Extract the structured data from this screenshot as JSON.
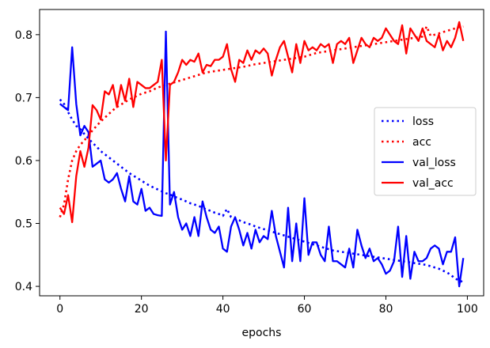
{
  "chart_data": {
    "type": "line",
    "title": "",
    "xlabel": "epochs",
    "ylabel": "",
    "xlim": [
      -5,
      104
    ],
    "ylim": [
      0.385,
      0.84
    ],
    "xticks": [
      0,
      20,
      40,
      60,
      80,
      100
    ],
    "yticks": [
      0.4,
      0.5,
      0.6,
      0.7,
      0.8
    ],
    "grid": false,
    "legend_position": "center-right",
    "x": [
      0,
      1,
      2,
      3,
      4,
      5,
      6,
      7,
      8,
      9,
      10,
      11,
      12,
      13,
      14,
      15,
      16,
      17,
      18,
      19,
      20,
      21,
      22,
      23,
      24,
      25,
      26,
      27,
      28,
      29,
      30,
      31,
      32,
      33,
      34,
      35,
      36,
      37,
      38,
      39,
      40,
      41,
      42,
      43,
      44,
      45,
      46,
      47,
      48,
      49,
      50,
      51,
      52,
      53,
      54,
      55,
      56,
      57,
      58,
      59,
      60,
      61,
      62,
      63,
      64,
      65,
      66,
      67,
      68,
      69,
      70,
      71,
      72,
      73,
      74,
      75,
      76,
      77,
      78,
      79,
      80,
      81,
      82,
      83,
      84,
      85,
      86,
      87,
      88,
      89,
      90,
      91,
      92,
      93,
      94,
      95,
      96,
      97,
      98,
      99
    ],
    "series": [
      {
        "name": "loss",
        "color": "#0000ff",
        "style": "dotted",
        "values": [
          0.697,
          0.69,
          0.677,
          0.665,
          0.655,
          0.65,
          0.642,
          0.635,
          0.628,
          0.622,
          0.615,
          0.61,
          0.605,
          0.6,
          0.595,
          0.59,
          0.585,
          0.58,
          0.576,
          0.572,
          0.568,
          0.564,
          0.56,
          0.557,
          0.554,
          0.551,
          0.548,
          0.546,
          0.543,
          0.54,
          0.538,
          0.535,
          0.532,
          0.53,
          0.528,
          0.525,
          0.522,
          0.52,
          0.517,
          0.515,
          0.512,
          0.523,
          0.51,
          0.507,
          0.505,
          0.502,
          0.5,
          0.498,
          0.495,
          0.493,
          0.491,
          0.489,
          0.487,
          0.485,
          0.483,
          0.481,
          0.479,
          0.477,
          0.475,
          0.473,
          0.471,
          0.469,
          0.467,
          0.465,
          0.463,
          0.461,
          0.459,
          0.457,
          0.456,
          0.455,
          0.454,
          0.453,
          0.452,
          0.451,
          0.45,
          0.449,
          0.448,
          0.447,
          0.446,
          0.445,
          0.444,
          0.443,
          0.442,
          0.441,
          0.44,
          0.439,
          0.438,
          0.437,
          0.436,
          0.435,
          0.434,
          0.432,
          0.43,
          0.428,
          0.425,
          0.422,
          0.418,
          0.412,
          0.41,
          0.406
        ]
      },
      {
        "name": "acc",
        "color": "#ff0000",
        "style": "dotted",
        "values": [
          0.51,
          0.53,
          0.57,
          0.6,
          0.615,
          0.625,
          0.632,
          0.64,
          0.648,
          0.655,
          0.662,
          0.668,
          0.674,
          0.68,
          0.685,
          0.689,
          0.693,
          0.697,
          0.7,
          0.703,
          0.706,
          0.708,
          0.71,
          0.713,
          0.716,
          0.718,
          0.72,
          0.722,
          0.724,
          0.726,
          0.728,
          0.73,
          0.732,
          0.734,
          0.736,
          0.738,
          0.74,
          0.741,
          0.742,
          0.743,
          0.744,
          0.745,
          0.746,
          0.747,
          0.748,
          0.749,
          0.75,
          0.752,
          0.753,
          0.754,
          0.755,
          0.756,
          0.757,
          0.758,
          0.759,
          0.76,
          0.761,
          0.762,
          0.763,
          0.764,
          0.765,
          0.767,
          0.769,
          0.771,
          0.772,
          0.773,
          0.774,
          0.775,
          0.776,
          0.777,
          0.778,
          0.779,
          0.78,
          0.781,
          0.782,
          0.783,
          0.784,
          0.785,
          0.786,
          0.787,
          0.788,
          0.789,
          0.79,
          0.791,
          0.792,
          0.793,
          0.794,
          0.795,
          0.796,
          0.797,
          0.813,
          0.798,
          0.8,
          0.802,
          0.804,
          0.806,
          0.808,
          0.81,
          0.812,
          0.813
        ]
      },
      {
        "name": "val_loss",
        "color": "#0000ff",
        "style": "solid",
        "values": [
          0.69,
          0.685,
          0.68,
          0.78,
          0.69,
          0.64,
          0.655,
          0.645,
          0.59,
          0.595,
          0.6,
          0.57,
          0.565,
          0.57,
          0.58,
          0.555,
          0.535,
          0.575,
          0.535,
          0.53,
          0.555,
          0.52,
          0.525,
          0.515,
          0.513,
          0.512,
          0.805,
          0.53,
          0.55,
          0.51,
          0.49,
          0.5,
          0.48,
          0.51,
          0.48,
          0.535,
          0.51,
          0.49,
          0.485,
          0.495,
          0.46,
          0.455,
          0.495,
          0.51,
          0.49,
          0.465,
          0.485,
          0.46,
          0.49,
          0.47,
          0.48,
          0.475,
          0.52,
          0.48,
          0.455,
          0.43,
          0.525,
          0.44,
          0.5,
          0.44,
          0.54,
          0.45,
          0.47,
          0.47,
          0.45,
          0.44,
          0.495,
          0.44,
          0.44,
          0.435,
          0.43,
          0.46,
          0.43,
          0.49,
          0.465,
          0.445,
          0.46,
          0.44,
          0.445,
          0.435,
          0.42,
          0.425,
          0.44,
          0.495,
          0.415,
          0.48,
          0.412,
          0.455,
          0.44,
          0.44,
          0.445,
          0.46,
          0.465,
          0.46,
          0.435,
          0.455,
          0.455,
          0.478,
          0.4,
          0.445
        ]
      },
      {
        "name": "val_acc",
        "color": "#ff0000",
        "style": "solid",
        "values": [
          0.525,
          0.515,
          0.545,
          0.502,
          0.575,
          0.615,
          0.59,
          0.62,
          0.688,
          0.68,
          0.665,
          0.71,
          0.705,
          0.72,
          0.685,
          0.72,
          0.695,
          0.73,
          0.685,
          0.725,
          0.72,
          0.715,
          0.715,
          0.72,
          0.725,
          0.76,
          0.6,
          0.72,
          0.725,
          0.74,
          0.76,
          0.752,
          0.76,
          0.757,
          0.77,
          0.74,
          0.752,
          0.75,
          0.76,
          0.76,
          0.765,
          0.785,
          0.745,
          0.725,
          0.76,
          0.755,
          0.775,
          0.76,
          0.775,
          0.77,
          0.778,
          0.77,
          0.735,
          0.76,
          0.78,
          0.79,
          0.765,
          0.74,
          0.785,
          0.755,
          0.79,
          0.775,
          0.78,
          0.775,
          0.785,
          0.78,
          0.785,
          0.755,
          0.785,
          0.79,
          0.785,
          0.795,
          0.755,
          0.775,
          0.795,
          0.785,
          0.78,
          0.795,
          0.79,
          0.795,
          0.81,
          0.8,
          0.79,
          0.785,
          0.815,
          0.77,
          0.81,
          0.8,
          0.79,
          0.81,
          0.79,
          0.785,
          0.78,
          0.8,
          0.775,
          0.79,
          0.78,
          0.795,
          0.82,
          0.79
        ]
      }
    ]
  }
}
